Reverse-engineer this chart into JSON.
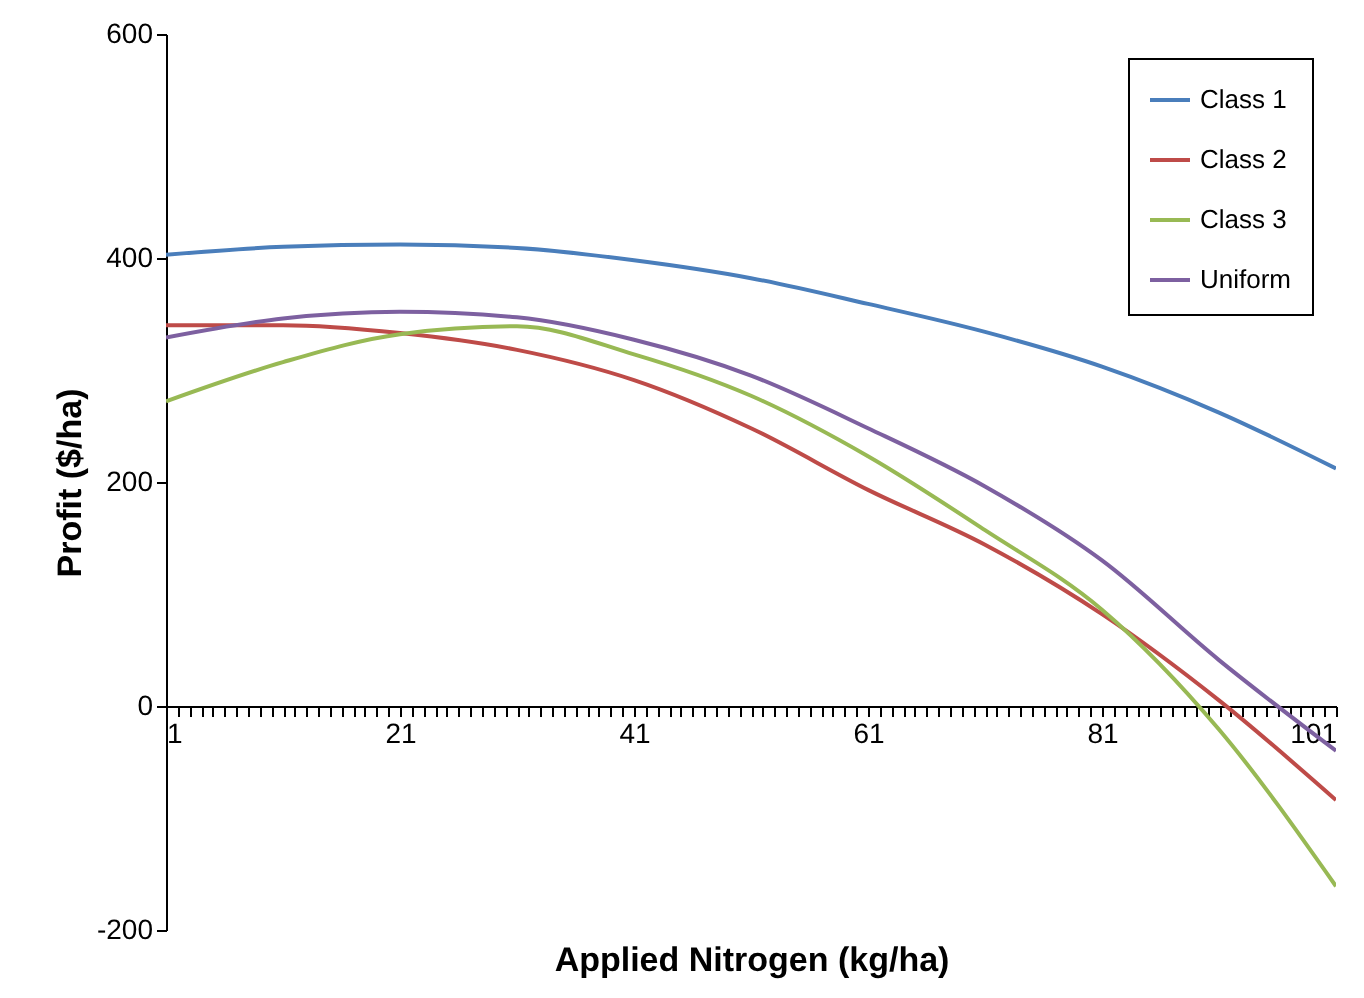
{
  "chart_data": {
    "type": "line",
    "xlabel": "Applied Nitrogen (kg/ha)",
    "ylabel": "Profit ($/ha)",
    "x": [
      1,
      11,
      21,
      31,
      41,
      51,
      61,
      71,
      81,
      91,
      101
    ],
    "series": [
      {
        "name": "Class 1",
        "color": "#4a7ebb",
        "values": [
          403,
          410,
          412,
          409,
          398,
          382,
          359,
          334,
          303,
          262,
          212
        ]
      },
      {
        "name": "Class 2",
        "color": "#be4b48",
        "values": [
          340,
          340,
          333,
          318,
          291,
          248,
          193,
          144,
          82,
          5,
          -84
        ]
      },
      {
        "name": "Class 3",
        "color": "#98b954",
        "values": [
          272,
          307,
          332,
          339,
          314,
          277,
          223,
          157,
          86,
          -21,
          -161
        ]
      },
      {
        "name": "Uniform",
        "color": "#7d60a0",
        "values": [
          329,
          346,
          352,
          347,
          327,
          295,
          248,
          196,
          130,
          41,
          -40
        ]
      }
    ],
    "xlim": [
      1,
      101
    ],
    "xticks": [
      1,
      21,
      41,
      61,
      81,
      101
    ],
    "ylim": [
      -200,
      600
    ],
    "yticks": [
      -200,
      0,
      200,
      400,
      600
    ],
    "grid": false,
    "legend": "top right",
    "marker": "none",
    "line_style": "solid"
  }
}
